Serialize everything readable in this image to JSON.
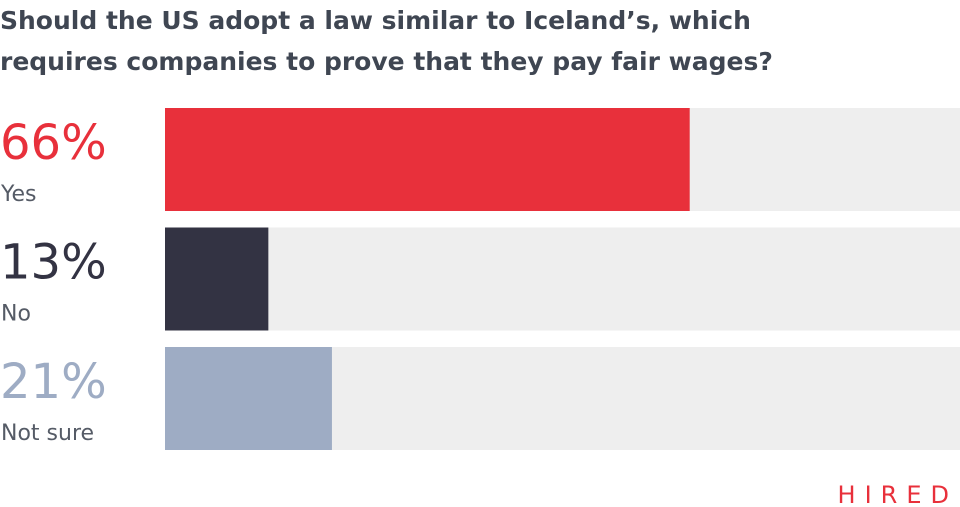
{
  "chart_data": {
    "type": "bar",
    "orientation": "horizontal",
    "title": "Should the US adopt a law similar to Iceland’s, which requires companies to prove that they pay fair wages?",
    "categories": [
      "Yes",
      "No",
      "Not sure"
    ],
    "values": [
      66,
      13,
      21
    ],
    "value_labels": [
      "66%",
      "13%",
      "21%"
    ],
    "colors": [
      "#e8303b",
      "#333343",
      "#9eacc4"
    ],
    "xlim": [
      0,
      100
    ],
    "brand": "HIRED"
  }
}
